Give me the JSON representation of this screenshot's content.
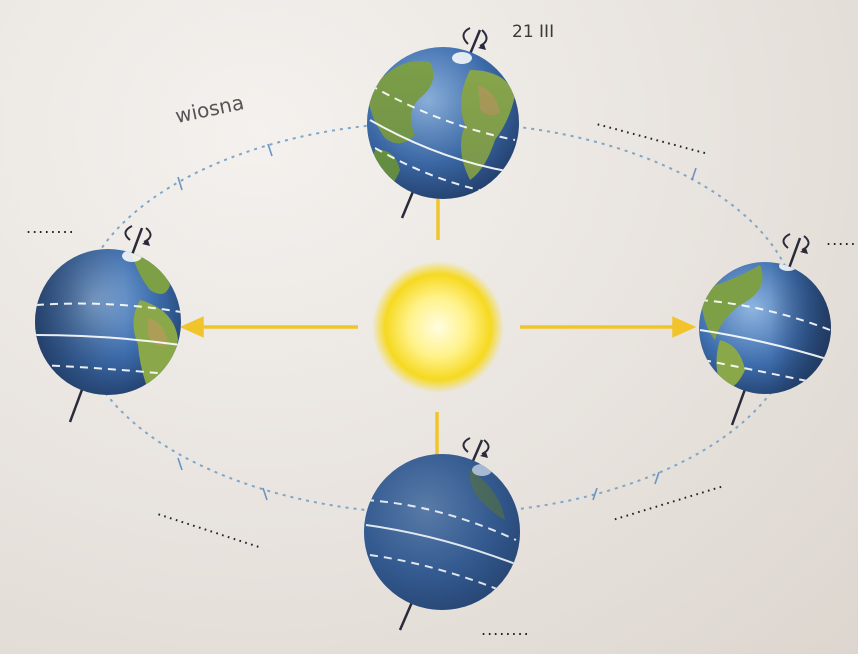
{
  "labels": {
    "season": "wiosna",
    "date": "21 III"
  },
  "blanks": {
    "left": "........",
    "right": "......",
    "top_right": "...................",
    "bottom_left": "..................",
    "bottom_right": "...................",
    "bottom": "........"
  },
  "colors": {
    "orbit": "#7fa6c8",
    "arrow": "#f2c42c",
    "sun_core": "#fff7b0",
    "sun_edge": "#f3d21a",
    "ocean": "#3d6fb0",
    "land": "#6f9a3e",
    "night": "#2c4a78"
  },
  "icons": [
    "sun-icon",
    "earth-globe-icon",
    "rotation-arrow-icon",
    "orbit-arrow-icon"
  ]
}
